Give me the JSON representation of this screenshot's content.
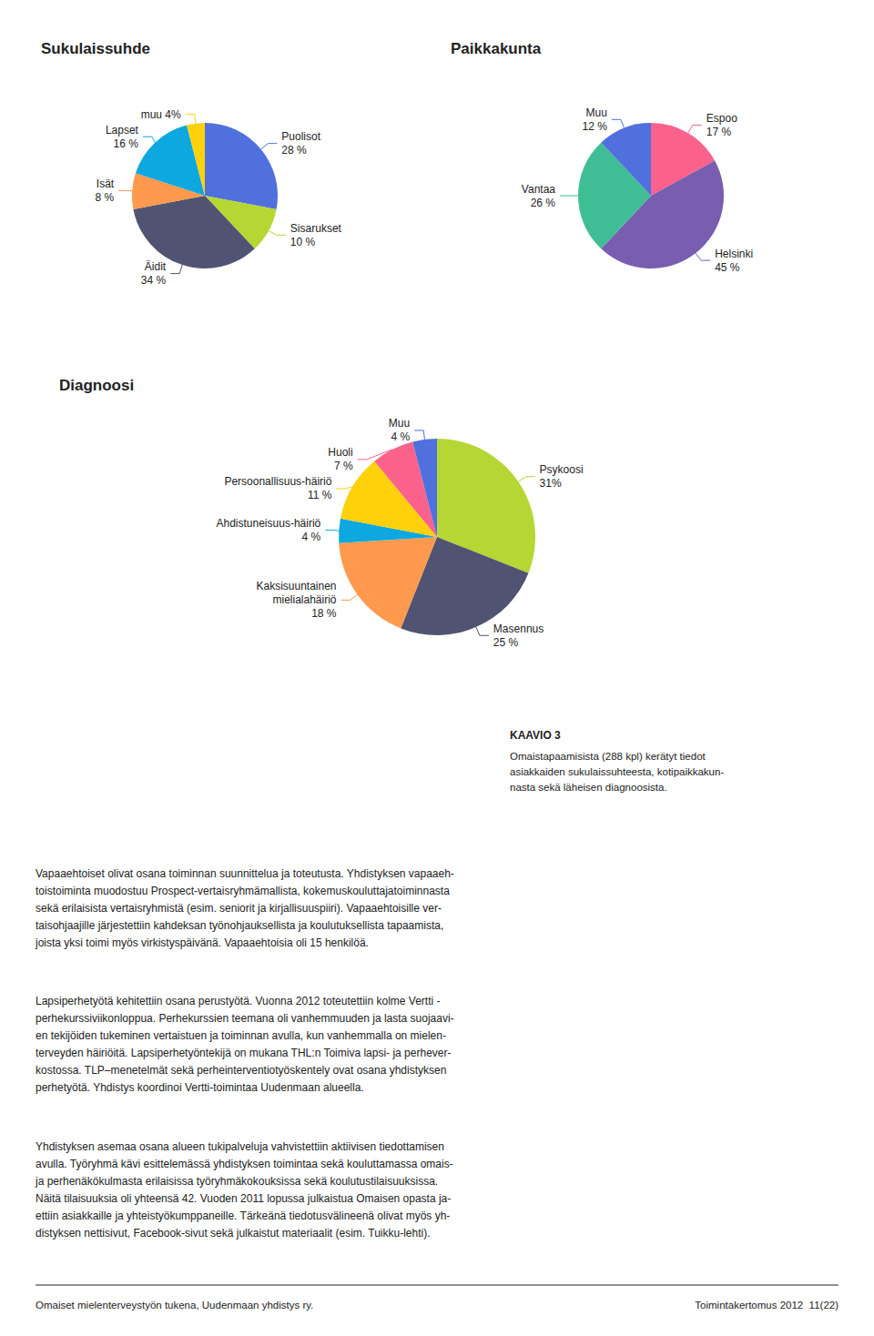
{
  "chart_data": [
    {
      "type": "pie",
      "title": "Sukulaissuhde",
      "categories": [
        "Puolisot",
        "Sisarukset",
        "Äidit",
        "Isät",
        "Lapset",
        "muu"
      ],
      "values": [
        28,
        10,
        34,
        8,
        16,
        4
      ],
      "value_labels": [
        "Puolisot\n28 %",
        "Sisarukset\n10 %",
        "Äidit\n34 %",
        "Isät\n8 %",
        "Lapset\n16 %",
        "muu 4%"
      ],
      "data_labels": true
    },
    {
      "type": "pie",
      "title": "Paikkakunta",
      "categories": [
        "Espoo",
        "Helsinki",
        "Vantaa",
        "Muu"
      ],
      "values": [
        17,
        45,
        26,
        12
      ],
      "value_labels": [
        "Espoo\n17 %",
        "Helsinki\n45 %",
        "Vantaa\n26 %",
        "Muu\n12 %"
      ],
      "data_labels": true
    },
    {
      "type": "pie",
      "title": "Diagnoosi",
      "categories": [
        "Psykoosi",
        "Masennus",
        "Kaksisuuntainen\nmielialahäiriö",
        "Ahdistuneisuus-häiriö",
        "Persoonallisuus-häiriö",
        "Huoli",
        "Muu"
      ],
      "values": [
        31,
        25,
        18,
        4,
        11,
        7,
        4
      ],
      "value_labels": [
        "Psykoosi\n31%",
        "Masennus\n25 %",
        "Kaksisuuntainen\nmielialahäiriö\n18 %",
        "Ahdistuneisuus-häiriö\n4 %",
        "Persoonallisuus-häiriö\n11 %",
        "Huoli\n7 %",
        "Muu\n4 %"
      ],
      "data_labels": true
    }
  ],
  "annotations": [
    "KAAVIO 3",
    "Omaistapaamisista (288 kpl) kerätyt tiedot\nasiakkaiden sukulaissuhteesta, kotipaikkakun-\nnasta sekä läheisen diagnoosista.",
    "Vapaaehtoiset olivat osana toiminnan suunnittelua ja toteutusta. Yhdistyksen vapaaeh-\ntoistoiminta muodostuu Prospect-vertaisryhmämallista, kokemuskouluttajatoiminnasta\nsekä erilaisista vertaisryhmistä (esim. seniorit ja kirjallisuuspiiri). Vapaaehtoisille ver-\ntaisohjaajille järjestettiin kahdeksan työnohjauksellista ja koulutuksellista tapaamista,\njoista yksi toimi myös virkistyspäivänä. Vapaaehtoisia oli 15 henkilöä.",
    "Lapsiperhetyötä kehitettiin osana perustyötä. Vuonna 2012 toteutettiin kolme Vertti -\nperhekurssiviikonloppua. Perhekurssien teemana oli vanhemmuuden ja lasta suojaavi-\nen tekijöiden tukeminen vertaistuen ja toiminnan avulla, kun vanhemmalla on mielen-\nterveyden häiriöitä. Lapsiperhetyöntekijä on mukana THL:n Toimiva lapsi- ja perhever-\nkostossa. TLP–menetelmät sekä perheinterventiotyöskentely ovat osana yhdistyksen\nperhetyötä. Yhdistys koordinoi Vertti-toimintaa Uudenmaan alueella.",
    "Yhdistyksen asemaa osana alueen tukipalveluja vahvistettiin aktiivisen tiedottamisen\navulla. Työryhmä kävi esittelemässä yhdistyksen toimintaa sekä kouluttamassa omais-\nja perhenäkökulmasta erilaisissa työryhmäkokouksissa sekä koulutustilaisuuksissa.\nNäitä tilaisuuksia oli yhteensä 42. Vuoden 2011 lopussa julkaistua Omaisen opasta ja-\nettiin asiakkaille ja yhteistyökumppaneille. Tärkeänä tiedotusvälineenä olivat myös yh-\ndistyksen nettisivut, Facebook-sivut sekä julkaistut materiaalit (esim. Tuikku-lehti).",
    "Omaiset mielenterveystyön tukena, Uudenmaan yhdistys ry.",
    "Toimintakertomus 2012  11(22)"
  ]
}
